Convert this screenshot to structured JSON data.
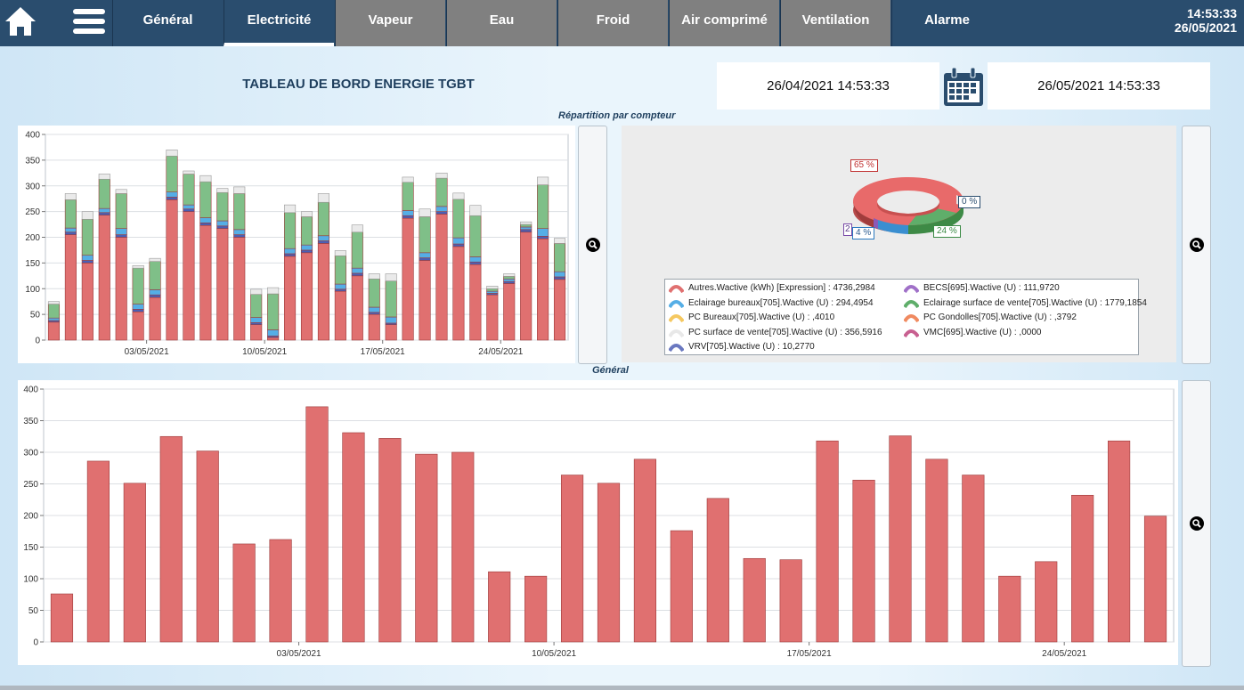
{
  "nav": {
    "tabs": [
      {
        "label": "Général",
        "state": "normal"
      },
      {
        "label": "Electricité",
        "state": "active"
      },
      {
        "label": "Vapeur",
        "state": "grey"
      },
      {
        "label": "Eau",
        "state": "grey"
      },
      {
        "label": "Froid",
        "state": "grey"
      },
      {
        "label": "Air comprimé",
        "state": "grey"
      },
      {
        "label": "Ventilation",
        "state": "grey"
      },
      {
        "label": "Alarme",
        "state": "normal"
      }
    ],
    "time": "14:53:33",
    "date": "26/05/2021"
  },
  "header": {
    "title": "TABLEAU DE BORD ENERGIE TGBT",
    "date_from": "26/04/2021 14:53:33",
    "date_to": "26/05/2021 14:53:33"
  },
  "sections": {
    "repartition_label": "Répartition par compteur",
    "general_label": "Général"
  },
  "colors": {
    "red": "#e07070",
    "green": "#7fbf88",
    "blue": "#55aee6",
    "darkblue": "#4a5fb5",
    "magenta": "#c060a8",
    "light": "#eaeaea",
    "nav_bg": "#2a4d6e",
    "tab_grey": "#808080"
  },
  "pie": {
    "labels": [
      "65 %",
      "24 %",
      "4 %",
      "2",
      "0 %"
    ]
  },
  "legend": [
    {
      "text": "Autres.Wactive (kWh)  [Expression] : 4736,2984",
      "color": "#e07070"
    },
    {
      "text": "BECS[695].Wactive (U) : 111,9720",
      "color": "#a070c8"
    },
    {
      "text": "Eclairage bureaux[705].Wactive (U) : 294,4954",
      "color": "#55aee6"
    },
    {
      "text": "Eclairage surface de vente[705].Wactive (U) : 1779,1854",
      "color": "#5fae6a"
    },
    {
      "text": "PC Bureaux[705].Wactive (U) : ,4010",
      "color": "#f5c860"
    },
    {
      "text": "PC Gondolles[705].Wactive (U) : ,3792",
      "color": "#f08a60"
    },
    {
      "text": "PC surface de vente[705].Wactive (U) : 356,5916",
      "color": "#e8e8e8"
    },
    {
      "text": "VMC[695].Wactive (U) : ,0000",
      "color": "#c86090"
    },
    {
      "text": "VRV[705].Wactive (U) : 10,2770",
      "color": "#6a78c0"
    }
  ],
  "chart_data": [
    {
      "type": "bar",
      "stacked": true,
      "title": "Répartition par compteur",
      "ylim": [
        0,
        400
      ],
      "yticks": [
        0,
        50,
        100,
        150,
        200,
        250,
        300,
        350,
        400
      ],
      "x_tick_labels": [
        "03/05/2021",
        "10/05/2021",
        "17/05/2021",
        "24/05/2021"
      ],
      "series": [
        {
          "color": "#e07070",
          "values": [
            35,
            205,
            150,
            243,
            200,
            55,
            83,
            273,
            250,
            223,
            217,
            200,
            30,
            5,
            163,
            170,
            188,
            95,
            125,
            50,
            30,
            237,
            155,
            245,
            182,
            147,
            88,
            110,
            210,
            197,
            118
          ]
        },
        {
          "color": "#4a5fb5",
          "values": [
            3,
            5,
            5,
            5,
            5,
            5,
            5,
            5,
            5,
            5,
            5,
            5,
            4,
            3,
            5,
            5,
            5,
            4,
            5,
            4,
            3,
            5,
            5,
            5,
            5,
            5,
            3,
            4,
            5,
            5,
            5
          ]
        },
        {
          "color": "#55aee6",
          "values": [
            5,
            8,
            10,
            8,
            12,
            10,
            10,
            10,
            8,
            10,
            10,
            10,
            10,
            12,
            10,
            10,
            10,
            10,
            10,
            10,
            12,
            10,
            10,
            10,
            12,
            10,
            4,
            5,
            5,
            15,
            10
          ]
        },
        {
          "color": "#7fbf88",
          "values": [
            27,
            55,
            70,
            57,
            68,
            70,
            55,
            70,
            60,
            70,
            55,
            70,
            45,
            70,
            70,
            55,
            65,
            55,
            70,
            55,
            70,
            55,
            70,
            55,
            75,
            80,
            5,
            5,
            5,
            85,
            55
          ]
        },
        {
          "color": "#eaeaea",
          "values": [
            5,
            12,
            15,
            10,
            8,
            5,
            6,
            12,
            6,
            12,
            8,
            13,
            10,
            12,
            15,
            10,
            17,
            10,
            14,
            10,
            14,
            10,
            15,
            10,
            12,
            20,
            5,
            5,
            5,
            15,
            10
          ]
        }
      ]
    },
    {
      "type": "bar",
      "title": "Général",
      "ylim": [
        0,
        400
      ],
      "yticks": [
        0,
        50,
        100,
        150,
        200,
        250,
        300,
        350,
        400
      ],
      "x_tick_labels": [
        "03/05/2021",
        "10/05/2021",
        "17/05/2021",
        "24/05/2021"
      ],
      "series": [
        {
          "color": "#e07070",
          "values": [
            76,
            286,
            251,
            325,
            302,
            155,
            162,
            372,
            331,
            322,
            297,
            300,
            111,
            104,
            264,
            251,
            289,
            176,
            227,
            132,
            130,
            318,
            256,
            326,
            289,
            264,
            104,
            127,
            232,
            318,
            199
          ]
        }
      ]
    }
  ]
}
